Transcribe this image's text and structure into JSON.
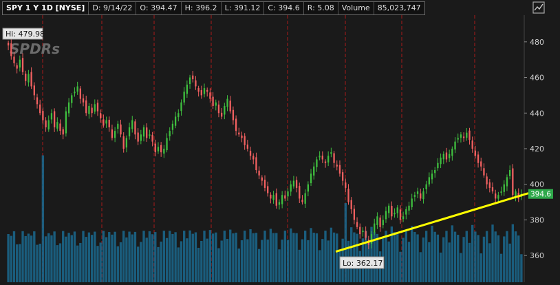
{
  "header": {
    "symbol": "SPY 1 Y 1D [NYSE]",
    "date": "D: 9/14/22",
    "open": "O: 394.47",
    "high": "H: 396.2",
    "low": "L: 391.12",
    "close": "C: 394.6",
    "range": "R: 5.08",
    "volume_label": "Volume",
    "volume_value": "85,023,747"
  },
  "watermark": "SPDRs",
  "annotations": {
    "hi": "Hi: 479.98",
    "lo": "Lo: 362.17",
    "last": "394.6"
  },
  "icons": {
    "corner": "chart-settings-icon"
  },
  "colors": {
    "background": "#1a1a1a",
    "up": "#3fbf3f",
    "down": "#f06060",
    "volume": "#1b6a8f",
    "trendline": "#ffff00",
    "grid": "#7a1a1a",
    "last_price_bg": "#2ea84a"
  },
  "chart_data": {
    "type": "candlestick",
    "ylim": [
      345,
      495
    ],
    "yticks": [
      "480",
      "460",
      "440",
      "420",
      "400",
      "380",
      "360"
    ],
    "hi_value": 479.98,
    "lo_value": 362.17,
    "last_close": 394.6,
    "trendline": {
      "from": 362.17,
      "to": 395
    },
    "closes": [
      478,
      472,
      468,
      465,
      470,
      463,
      458,
      462,
      455,
      450,
      445,
      440,
      436,
      432,
      436,
      440,
      432,
      435,
      430,
      428,
      441,
      446,
      450,
      452,
      455,
      448,
      446,
      440,
      444,
      440,
      445,
      441,
      437,
      433,
      436,
      432,
      426,
      430,
      434,
      428,
      420,
      426,
      432,
      436,
      428,
      424,
      428,
      432,
      426,
      428,
      424,
      418,
      421,
      418,
      420,
      426,
      430,
      434,
      438,
      440,
      446,
      452,
      456,
      460,
      459,
      455,
      452,
      450,
      454,
      452,
      448,
      444,
      446,
      440,
      438,
      444,
      448,
      441,
      436,
      430,
      428,
      426,
      422,
      420,
      416,
      414,
      408,
      405,
      402,
      398,
      395,
      392,
      394,
      388,
      390,
      394,
      392,
      396,
      400,
      402,
      398,
      392,
      390,
      395,
      400,
      406,
      410,
      414,
      416,
      414,
      412,
      416,
      418,
      412,
      410,
      406,
      402,
      398,
      390,
      386,
      380,
      376,
      372,
      374,
      370,
      366,
      372,
      378,
      382,
      376,
      380,
      385,
      388,
      382,
      384,
      387,
      380,
      382,
      386,
      388,
      392,
      394,
      396,
      392,
      396,
      400,
      404,
      406,
      408,
      412,
      415,
      417,
      414,
      417,
      420,
      424,
      426,
      428,
      426,
      429,
      425,
      420,
      416,
      412,
      410,
      405,
      400,
      398,
      396,
      392,
      394,
      396,
      400,
      404,
      408,
      394,
      396,
      392,
      394.6
    ]
  }
}
